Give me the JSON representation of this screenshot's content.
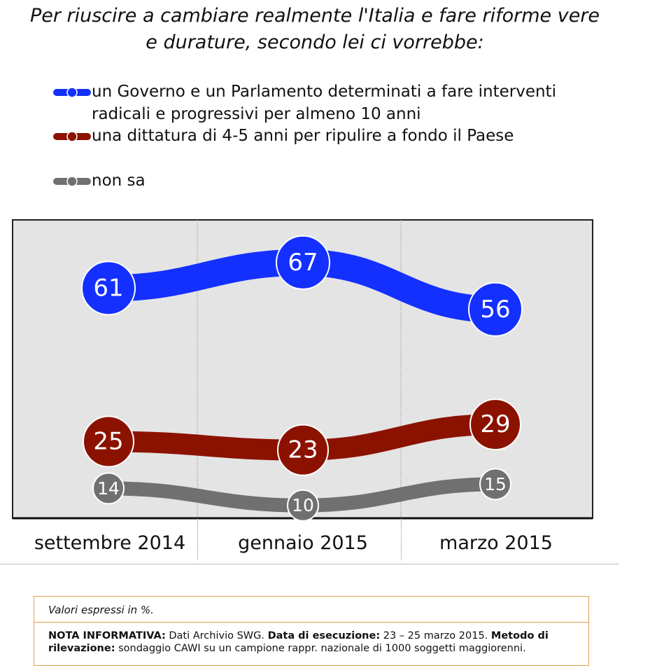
{
  "title": {
    "line1": "Per riuscire a cambiare realmente l'Italia e fare riforme vere",
    "line2": "e durature, secondo lei ci vorrebbe:"
  },
  "colors": {
    "governo": "#1430ff",
    "dittatura": "#8c1200",
    "non_sa": "#707070",
    "plot_bg": "#e4e4e4",
    "note_border": "#e3a04a"
  },
  "legend": [
    {
      "key": "governo",
      "line1": "un Governo e un Parlamento determinati a fare interventi",
      "line2": "radicali e progressivi per almeno 10 anni"
    },
    {
      "key": "dittatura",
      "line1": "una dittatura di 4-5 anni per ripulire a fondo il Paese",
      "line2": ""
    },
    {
      "key": "non_sa",
      "line1": "non sa",
      "line2": ""
    }
  ],
  "chart_data": {
    "type": "line",
    "categories": [
      "settembre 2014",
      "gennaio 2015",
      "marzo 2015"
    ],
    "series": [
      {
        "name": "un Governo e un Parlamento determinati a fare interventi radicali e progressivi per almeno 10 anni",
        "key": "governo",
        "values": [
          61,
          67,
          56
        ]
      },
      {
        "name": "una dittatura di 4-5 anni per ripulire a fondo il Paese",
        "key": "dittatura",
        "values": [
          25,
          23,
          29
        ]
      },
      {
        "name": "non sa",
        "key": "non_sa",
        "values": [
          14,
          10,
          15
        ]
      }
    ],
    "ylim": [
      7,
      77
    ],
    "grid": false,
    "legend_position": "top-left",
    "data_labels": true
  },
  "notes": {
    "units": "Valori espressi in %.",
    "info_label": "NOTA INFORMATIVA:",
    "info_source": "Dati Archivio SWG.",
    "date_label": "Data di esecuzione:",
    "date_value": "23 – 25 marzo 2015.",
    "method_label": "Metodo di rilevazione:",
    "method_value": "sondaggio CAWI su un campione rappr. nazionale di 1000 soggetti maggiorenni."
  }
}
